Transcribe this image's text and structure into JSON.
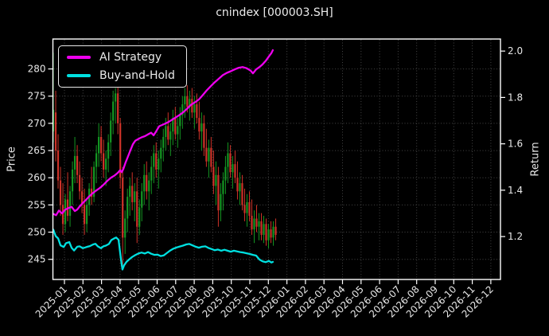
{
  "header": {
    "title": "cnindex [000003.SH]"
  },
  "chart_data": {
    "type": "candlestick+line",
    "title": "cnindex [000003.SH]",
    "ylabel_left": "Price",
    "ylabel_right": "Return",
    "grid": true,
    "legend_position": "upper-left",
    "legend": [
      {
        "label": "AI Strategy",
        "color": "#ee00ee"
      },
      {
        "label": "Buy-and-Hold",
        "color": "#00e0e0"
      }
    ],
    "colors": {
      "up": "#149622",
      "down": "#cd3228",
      "grid": "#454545",
      "axis": "#ffffff",
      "text": "#e8e8e8",
      "background": "#000000"
    },
    "axes": {
      "x": {
        "min": -0.622,
        "max": 23.52,
        "tick_labels": [
          "2025-01",
          "2025-02",
          "2025-03",
          "2025-04",
          "2025-05",
          "2025-06",
          "2025-07",
          "2025-08",
          "2025-09",
          "2025-10",
          "2025-11",
          "2025-12",
          "2026-01",
          "2026-02",
          "2026-03",
          "2026-04",
          "2026-05",
          "2026-06",
          "2026-07",
          "2026-08",
          "2026-09",
          "2026-10",
          "2026-11",
          "2026-12"
        ]
      },
      "price": {
        "min": 241.3,
        "max": 285.5,
        "ticks": [
          245,
          250,
          255,
          260,
          265,
          270,
          275,
          280
        ]
      },
      "ret": {
        "min": 1.015,
        "max": 2.052,
        "ticks": [
          1.2,
          1.4,
          1.6,
          1.8,
          2.0
        ]
      }
    },
    "candles": {
      "t0": -0.6,
      "dt": 0.129,
      "ohlc": [
        [
          268.5,
          283,
          266.5,
          272.5
        ],
        [
          272,
          276,
          263,
          265
        ],
        [
          265,
          268,
          258,
          259.5
        ],
        [
          259.5,
          262,
          253,
          255
        ],
        [
          255,
          259,
          249.5,
          251.5
        ],
        [
          251.5,
          257,
          250,
          256
        ],
        [
          256,
          261,
          252,
          253
        ],
        [
          253,
          258.5,
          251,
          257.5
        ],
        [
          257.5,
          263,
          255,
          261.5
        ],
        [
          261.5,
          267.5,
          259,
          264
        ],
        [
          264,
          266,
          259,
          260.5
        ],
        [
          260.5,
          263,
          256,
          257.5
        ],
        [
          257.5,
          260,
          253.5,
          255
        ],
        [
          255,
          258,
          249.5,
          251.5
        ],
        [
          251.5,
          256,
          250,
          255
        ],
        [
          255,
          259,
          253,
          258
        ],
        [
          258,
          262,
          255,
          256.5
        ],
        [
          256.5,
          263,
          255.5,
          262
        ],
        [
          262,
          266,
          259,
          264.5
        ],
        [
          264.5,
          270,
          262,
          267.5
        ],
        [
          267.5,
          269.5,
          263,
          264.5
        ],
        [
          264.5,
          267,
          260,
          261.5
        ],
        [
          261.5,
          265,
          258.5,
          263.5
        ],
        [
          263.5,
          268,
          261,
          266.5
        ],
        [
          266.5,
          272,
          264,
          270.5
        ],
        [
          270.5,
          276,
          268,
          274
        ],
        [
          274,
          276.5,
          270,
          275.5
        ],
        [
          275.5,
          277,
          268,
          270
        ],
        [
          270,
          271,
          258,
          260
        ],
        [
          260,
          262,
          243.5,
          249
        ],
        [
          249,
          254,
          246,
          252.5
        ],
        [
          252.5,
          258,
          250,
          256.5
        ],
        [
          256.5,
          260,
          253,
          258.5
        ],
        [
          258.5,
          261,
          254,
          255.5
        ],
        [
          255.5,
          259,
          252,
          257.5
        ],
        [
          257.5,
          260,
          248,
          251
        ],
        [
          251,
          256,
          249.5,
          254.5
        ],
        [
          254.5,
          259,
          252,
          257.5
        ],
        [
          257.5,
          262.5,
          255,
          260.5
        ],
        [
          260.5,
          263,
          256,
          257.5
        ],
        [
          257.5,
          261,
          254,
          259.5
        ],
        [
          259.5,
          264,
          257,
          262
        ],
        [
          262,
          266,
          259,
          264.5
        ],
        [
          264.5,
          266.5,
          260,
          261.5
        ],
        [
          261.5,
          265,
          258,
          263.5
        ],
        [
          263.5,
          267,
          261,
          265.5
        ],
        [
          265.5,
          269,
          263,
          267.5
        ],
        [
          267.5,
          271,
          265,
          269.5
        ],
        [
          269.5,
          272,
          266,
          267
        ],
        [
          267,
          270,
          264,
          268.5
        ],
        [
          268.5,
          272.5,
          266,
          271
        ],
        [
          271,
          273,
          267,
          268
        ],
        [
          268,
          271,
          265.5,
          269.5
        ],
        [
          269.5,
          273,
          267,
          271.5
        ],
        [
          271.5,
          275,
          269,
          273.5
        ],
        [
          273.5,
          276.5,
          271,
          275
        ],
        [
          275,
          277,
          272,
          273
        ],
        [
          273,
          276,
          270.5,
          274.5
        ],
        [
          274.5,
          276.5,
          271,
          272
        ],
        [
          272,
          275,
          269,
          273.5
        ],
        [
          273.5,
          275.5,
          270,
          271
        ],
        [
          271,
          274,
          267,
          268.5
        ],
        [
          268.5,
          272,
          265,
          270
        ],
        [
          270,
          271.5,
          264,
          265.5
        ],
        [
          265.5,
          269,
          262,
          263
        ],
        [
          263,
          267,
          260,
          265.5
        ],
        [
          265.5,
          267.5,
          261,
          262
        ],
        [
          262,
          265,
          257,
          258.5
        ],
        [
          258.5,
          263,
          255,
          260.5
        ],
        [
          260.5,
          262,
          251,
          254
        ],
        [
          254,
          259,
          252,
          257
        ],
        [
          257,
          261,
          254,
          259.5
        ],
        [
          259.5,
          264,
          257,
          262
        ],
        [
          262,
          266.5,
          259,
          264.5
        ],
        [
          264.5,
          266,
          260,
          261
        ],
        [
          261,
          264,
          258,
          262.5
        ],
        [
          262.5,
          265,
          259,
          260
        ],
        [
          260,
          263,
          256,
          257.5
        ],
        [
          257.5,
          261,
          255,
          259
        ],
        [
          259,
          260.5,
          254,
          255
        ],
        [
          255,
          258,
          252,
          253.5
        ],
        [
          253.5,
          257,
          251,
          255.5
        ],
        [
          255.5,
          257.5,
          252,
          253
        ],
        [
          253,
          256,
          249.5,
          250.5
        ],
        [
          250.5,
          254,
          248,
          252.5
        ],
        [
          252.5,
          255,
          250,
          251
        ],
        [
          251,
          253.5,
          248.5,
          252
        ],
        [
          252,
          253.5,
          248.5,
          249.5
        ],
        [
          249.5,
          253,
          248,
          251.5
        ],
        [
          251.5,
          252.5,
          247.5,
          248.5
        ],
        [
          248.5,
          251.5,
          247,
          250.5
        ],
        [
          250.5,
          252,
          248,
          249
        ],
        [
          249,
          252,
          247.5,
          251
        ],
        [
          251,
          252.5,
          248.5,
          249.5
        ]
      ]
    },
    "series": [
      {
        "name": "AI Strategy",
        "axis": "ret",
        "color": "#ee00ee",
        "points": [
          [
            -0.6,
            1.298
          ],
          [
            -0.45,
            1.292
          ],
          [
            -0.3,
            1.312
          ],
          [
            -0.13,
            1.3
          ],
          [
            0.04,
            1.316
          ],
          [
            0.22,
            1.323
          ],
          [
            0.39,
            1.328
          ],
          [
            0.56,
            1.31
          ],
          [
            0.69,
            1.317
          ],
          [
            0.82,
            1.33
          ],
          [
            0.99,
            1.345
          ],
          [
            1.16,
            1.358
          ],
          [
            1.33,
            1.373
          ],
          [
            1.5,
            1.385
          ],
          [
            1.67,
            1.396
          ],
          [
            1.85,
            1.406
          ],
          [
            2.02,
            1.417
          ],
          [
            2.19,
            1.43
          ],
          [
            2.36,
            1.444
          ],
          [
            2.53,
            1.455
          ],
          [
            2.7,
            1.463
          ],
          [
            2.88,
            1.475
          ],
          [
            3.0,
            1.486
          ],
          [
            3.09,
            1.478
          ],
          [
            3.18,
            1.492
          ],
          [
            3.3,
            1.52
          ],
          [
            3.43,
            1.546
          ],
          [
            3.56,
            1.572
          ],
          [
            3.69,
            1.598
          ],
          [
            3.82,
            1.613
          ],
          [
            3.99,
            1.621
          ],
          [
            4.16,
            1.628
          ],
          [
            4.34,
            1.633
          ],
          [
            4.51,
            1.641
          ],
          [
            4.68,
            1.648
          ],
          [
            4.81,
            1.637
          ],
          [
            4.94,
            1.653
          ],
          [
            5.11,
            1.676
          ],
          [
            5.32,
            1.683
          ],
          [
            5.54,
            1.691
          ],
          [
            5.75,
            1.701
          ],
          [
            5.97,
            1.712
          ],
          [
            6.18,
            1.723
          ],
          [
            6.39,
            1.735
          ],
          [
            6.61,
            1.751
          ],
          [
            6.82,
            1.768
          ],
          [
            7.04,
            1.779
          ],
          [
            7.25,
            1.791
          ],
          [
            7.47,
            1.811
          ],
          [
            7.68,
            1.831
          ],
          [
            7.9,
            1.849
          ],
          [
            8.11,
            1.866
          ],
          [
            8.33,
            1.881
          ],
          [
            8.54,
            1.896
          ],
          [
            8.76,
            1.906
          ],
          [
            8.97,
            1.913
          ],
          [
            9.18,
            1.921
          ],
          [
            9.4,
            1.928
          ],
          [
            9.61,
            1.931
          ],
          [
            9.83,
            1.926
          ],
          [
            10.04,
            1.916
          ],
          [
            10.17,
            1.904
          ],
          [
            10.34,
            1.921
          ],
          [
            10.52,
            1.931
          ],
          [
            10.69,
            1.943
          ],
          [
            10.86,
            1.958
          ],
          [
            11.03,
            1.977
          ],
          [
            11.16,
            1.991
          ],
          [
            11.24,
            2.004
          ]
        ]
      },
      {
        "name": "Buy-and-Hold",
        "axis": "ret",
        "color": "#00e0e0",
        "points": [
          [
            -0.6,
            1.23
          ],
          [
            -0.47,
            1.202
          ],
          [
            -0.34,
            1.192
          ],
          [
            -0.21,
            1.162
          ],
          [
            -0.04,
            1.155
          ],
          [
            0.09,
            1.172
          ],
          [
            0.26,
            1.176
          ],
          [
            0.39,
            1.151
          ],
          [
            0.52,
            1.14
          ],
          [
            0.69,
            1.156
          ],
          [
            0.82,
            1.158
          ],
          [
            0.99,
            1.15
          ],
          [
            1.12,
            1.153
          ],
          [
            1.24,
            1.156
          ],
          [
            1.37,
            1.159
          ],
          [
            1.55,
            1.166
          ],
          [
            1.67,
            1.169
          ],
          [
            1.8,
            1.158
          ],
          [
            1.97,
            1.15
          ],
          [
            2.1,
            1.158
          ],
          [
            2.23,
            1.161
          ],
          [
            2.4,
            1.168
          ],
          [
            2.53,
            1.185
          ],
          [
            2.66,
            1.191
          ],
          [
            2.79,
            1.196
          ],
          [
            2.92,
            1.186
          ],
          [
            3.05,
            1.1
          ],
          [
            3.13,
            1.058
          ],
          [
            3.22,
            1.076
          ],
          [
            3.35,
            1.091
          ],
          [
            3.48,
            1.101
          ],
          [
            3.65,
            1.112
          ],
          [
            3.82,
            1.12
          ],
          [
            3.99,
            1.127
          ],
          [
            4.16,
            1.131
          ],
          [
            4.33,
            1.127
          ],
          [
            4.51,
            1.133
          ],
          [
            4.68,
            1.126
          ],
          [
            4.85,
            1.121
          ],
          [
            5.02,
            1.122
          ],
          [
            5.19,
            1.116
          ],
          [
            5.36,
            1.119
          ],
          [
            5.54,
            1.13
          ],
          [
            5.71,
            1.14
          ],
          [
            5.88,
            1.148
          ],
          [
            6.05,
            1.153
          ],
          [
            6.22,
            1.157
          ],
          [
            6.39,
            1.161
          ],
          [
            6.57,
            1.166
          ],
          [
            6.74,
            1.168
          ],
          [
            6.91,
            1.162
          ],
          [
            7.08,
            1.156
          ],
          [
            7.25,
            1.152
          ],
          [
            7.42,
            1.156
          ],
          [
            7.6,
            1.158
          ],
          [
            7.77,
            1.151
          ],
          [
            7.94,
            1.146
          ],
          [
            8.11,
            1.141
          ],
          [
            8.28,
            1.144
          ],
          [
            8.46,
            1.139
          ],
          [
            8.63,
            1.143
          ],
          [
            8.8,
            1.139
          ],
          [
            8.97,
            1.135
          ],
          [
            9.14,
            1.139
          ],
          [
            9.31,
            1.136
          ],
          [
            9.48,
            1.133
          ],
          [
            9.66,
            1.131
          ],
          [
            9.83,
            1.128
          ],
          [
            10.0,
            1.125
          ],
          [
            10.17,
            1.121
          ],
          [
            10.34,
            1.118
          ],
          [
            10.52,
            1.101
          ],
          [
            10.69,
            1.093
          ],
          [
            10.86,
            1.09
          ],
          [
            11.03,
            1.095
          ],
          [
            11.16,
            1.088
          ],
          [
            11.24,
            1.091
          ]
        ]
      }
    ]
  }
}
